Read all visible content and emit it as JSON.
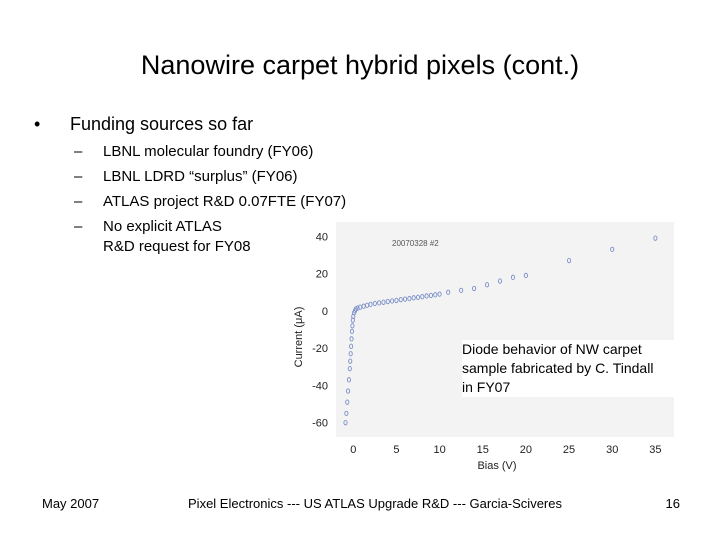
{
  "slide": {
    "title": "Nanowire carpet hybrid pixels (cont.)",
    "bullet": {
      "marker": "•",
      "text": "Funding sources so far"
    },
    "sub_items": [
      {
        "marker": "–",
        "text": "LBNL molecular foundry (FY06)"
      },
      {
        "marker": "–",
        "text": "LBNL LDRD “surplus” (FY06)"
      },
      {
        "marker": "–",
        "text": "ATLAS project R&D 0.07FTE (FY07)"
      },
      {
        "marker": "–",
        "text": "No explicit ATLAS\nR&D request for FY08"
      }
    ],
    "caption": "Diode behavior of NW carpet\nsample fabricated by C. Tindall\nin FY07",
    "footer": {
      "left": "May 2007",
      "center": "Pixel Electronics --- US ATLAS Upgrade R&D --- Garcia-Sciveres",
      "page_number": "16"
    }
  },
  "chart_data": {
    "type": "scatter",
    "annotation": "20070328 #2",
    "xlabel": "Bias (V)",
    "ylabel": "Current (μA)",
    "xlim": [
      -2,
      36
    ],
    "ylim": [
      -65,
      45
    ],
    "x_ticks": [
      0,
      5,
      10,
      15,
      20,
      25,
      30,
      35
    ],
    "y_ticks": [
      40,
      20,
      0,
      -20,
      -40,
      -60
    ],
    "series_color": "#7a8fc8",
    "points": {
      "x": [
        -0.9,
        -0.8,
        -0.7,
        -0.6,
        -0.5,
        -0.4,
        -0.35,
        -0.3,
        -0.25,
        -0.2,
        -0.15,
        -0.1,
        -0.05,
        0.0,
        0.1,
        0.2,
        0.3,
        0.5,
        0.8,
        1.2,
        1.6,
        2.0,
        2.5,
        3.0,
        3.5,
        4.0,
        4.5,
        5.0,
        5.5,
        6.0,
        6.5,
        7.0,
        7.5,
        8.0,
        8.5,
        9.0,
        9.5,
        10.0,
        11.0,
        12.5,
        14.0,
        15.5,
        17.0,
        18.5,
        20.0,
        25.0,
        30.0,
        35.0
      ],
      "y": [
        -60,
        -55,
        -49,
        -43,
        -37,
        -31,
        -27,
        -23,
        -19,
        -15,
        -11,
        -8,
        -5,
        -3,
        -1,
        0,
        1,
        1.5,
        2,
        2.5,
        3,
        3.5,
        4,
        4.3,
        4.6,
        5,
        5.3,
        5.6,
        6,
        6.3,
        6.6,
        7,
        7.3,
        7.6,
        8,
        8.3,
        8.6,
        9,
        10,
        11,
        12,
        14,
        16,
        18,
        19,
        27,
        33,
        39
      ]
    }
  }
}
